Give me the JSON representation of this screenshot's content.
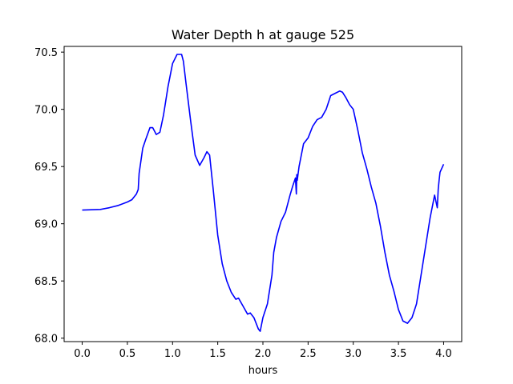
{
  "chart_data": {
    "type": "line",
    "title": "Water Depth h at gauge 525",
    "xlabel": "hours",
    "ylabel": "",
    "xlim": [
      -0.2,
      4.2
    ],
    "ylim": [
      67.97,
      70.55
    ],
    "xticks": [
      0.0,
      0.5,
      1.0,
      1.5,
      2.0,
      2.5,
      3.0,
      3.5,
      4.0
    ],
    "xtick_labels": [
      "0.0",
      "0.5",
      "1.0",
      "1.5",
      "2.0",
      "2.5",
      "3.0",
      "3.5",
      "4.0"
    ],
    "yticks": [
      68.0,
      68.5,
      69.0,
      69.5,
      70.0,
      70.5
    ],
    "ytick_labels": [
      "68.0",
      "68.5",
      "69.0",
      "69.5",
      "70.0",
      "70.5"
    ],
    "grid": false,
    "legend": "none",
    "series": [
      {
        "color": "#0000ff",
        "x": [
          0.0,
          0.2,
          0.3,
          0.4,
          0.5,
          0.55,
          0.6,
          0.62,
          0.63,
          0.65,
          0.67,
          0.7,
          0.75,
          0.78,
          0.82,
          0.86,
          0.9,
          0.95,
          1.0,
          1.05,
          1.1,
          1.12,
          1.15,
          1.2,
          1.25,
          1.3,
          1.35,
          1.38,
          1.41,
          1.45,
          1.5,
          1.55,
          1.6,
          1.65,
          1.7,
          1.73,
          1.78,
          1.83,
          1.86,
          1.9,
          1.95,
          1.97,
          2.0,
          2.05,
          2.1,
          2.12,
          2.15,
          2.2,
          2.25,
          2.3,
          2.33,
          2.36,
          2.37,
          2.375,
          2.38,
          2.39,
          2.4,
          2.42,
          2.45,
          2.5,
          2.55,
          2.6,
          2.65,
          2.7,
          2.75,
          2.8,
          2.85,
          2.88,
          2.92,
          2.96,
          3.0,
          3.05,
          3.1,
          3.15,
          3.2,
          3.25,
          3.3,
          3.35,
          3.4,
          3.45,
          3.5,
          3.55,
          3.6,
          3.65,
          3.7,
          3.75,
          3.8,
          3.85,
          3.9,
          3.93,
          3.94,
          3.95,
          3.96,
          4.0
        ],
        "y": [
          69.12,
          69.125,
          69.14,
          69.16,
          69.19,
          69.21,
          69.26,
          69.3,
          69.44,
          69.55,
          69.66,
          69.73,
          69.84,
          69.84,
          69.78,
          69.8,
          69.95,
          70.2,
          70.4,
          70.48,
          70.48,
          70.42,
          70.22,
          69.9,
          69.6,
          69.51,
          69.58,
          69.63,
          69.6,
          69.3,
          68.9,
          68.65,
          68.5,
          68.4,
          68.34,
          68.35,
          68.28,
          68.21,
          68.22,
          68.18,
          68.08,
          68.06,
          68.18,
          68.3,
          68.55,
          68.75,
          68.88,
          69.02,
          69.1,
          69.25,
          69.33,
          69.4,
          69.26,
          69.43,
          69.38,
          69.44,
          69.5,
          69.58,
          69.7,
          69.75,
          69.85,
          69.91,
          69.93,
          70.0,
          70.12,
          70.14,
          70.16,
          70.15,
          70.1,
          70.04,
          70.0,
          69.82,
          69.62,
          69.48,
          69.32,
          69.18,
          68.98,
          68.75,
          68.55,
          68.41,
          68.25,
          68.15,
          68.13,
          68.18,
          68.3,
          68.55,
          68.8,
          69.05,
          69.25,
          69.14,
          69.3,
          69.38,
          69.45,
          69.52
        ]
      }
    ]
  }
}
